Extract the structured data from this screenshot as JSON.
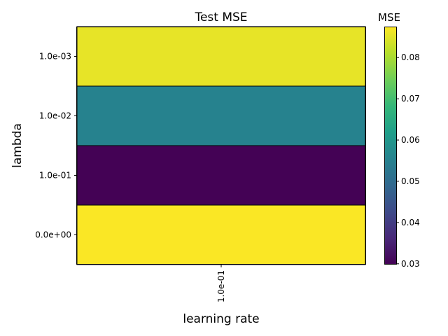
{
  "chart_data": {
    "type": "heatmap",
    "title": "Test MSE",
    "xlabel": "learning rate",
    "ylabel": "lambda",
    "x_categories": [
      "1.0e-01"
    ],
    "y_categories": [
      "1.0e-03",
      "1.0e-02",
      "1.0e-01",
      "0.0e+00"
    ],
    "values": [
      [
        0.0855
      ],
      [
        0.0555
      ],
      [
        0.03
      ],
      [
        0.0872
      ]
    ],
    "colorbar": {
      "label": "MSE",
      "range": [
        0.0298,
        0.0875
      ],
      "ticks": [
        "0.03",
        "0.04",
        "0.05",
        "0.06",
        "0.07",
        "0.08"
      ],
      "tick_values": [
        0.03,
        0.04,
        0.05,
        0.06,
        0.07,
        0.08
      ],
      "colormap": "viridis",
      "colormap_stops": [
        "#440154",
        "#482878",
        "#3e4a89",
        "#31688e",
        "#26828e",
        "#1f9e89",
        "#35b779",
        "#6ece58",
        "#b5de2b",
        "#fde725"
      ]
    },
    "grid": false
  }
}
